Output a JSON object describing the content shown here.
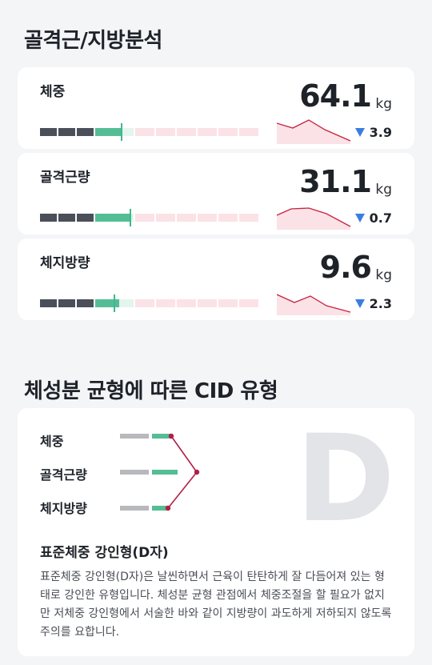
{
  "section1_title": "골격근/지방분석",
  "metrics": [
    {
      "label": "체중",
      "value": "64.1",
      "unit": "kg",
      "delta": "3.9",
      "direction": "down",
      "marker_level": 0.37
    },
    {
      "label": "골격근량",
      "value": "31.1",
      "unit": "kg",
      "delta": "0.7",
      "direction": "down",
      "marker_level": 0.41
    },
    {
      "label": "체지방량",
      "value": "9.6",
      "unit": "kg",
      "delta": "2.3",
      "direction": "down",
      "marker_level": 0.34
    }
  ],
  "section2_title": "체성분 균형에 따른 CID 유형",
  "cid": {
    "rows": [
      {
        "label": "체중"
      },
      {
        "label": "골격근량"
      },
      {
        "label": "체지방량"
      }
    ],
    "letter": "D",
    "type_title": "표준체중 강인형(D자)",
    "type_description": "표준체중 강인형(D자)은 날씬하면서 근육이 탄탄하게 잘 다듬어져 있는 형태로 강인한 유형입니다. 체성분 균형 관점에서 체중조절을 할 필요가 없지만 저체중 강인형에서 서술한 바와 같이 지방량이 과도하게 저하되지 않도록 주의를 요합니다."
  },
  "colors": {
    "dark_segment": "#4a4f59",
    "normal_segment": "#55bd96",
    "light_normal": "#e4f4ee",
    "over_segment": "#fbe2e6",
    "trend_line": "#c8203f",
    "down_arrow": "#3a7de0",
    "cid_line": "#b01f45"
  }
}
